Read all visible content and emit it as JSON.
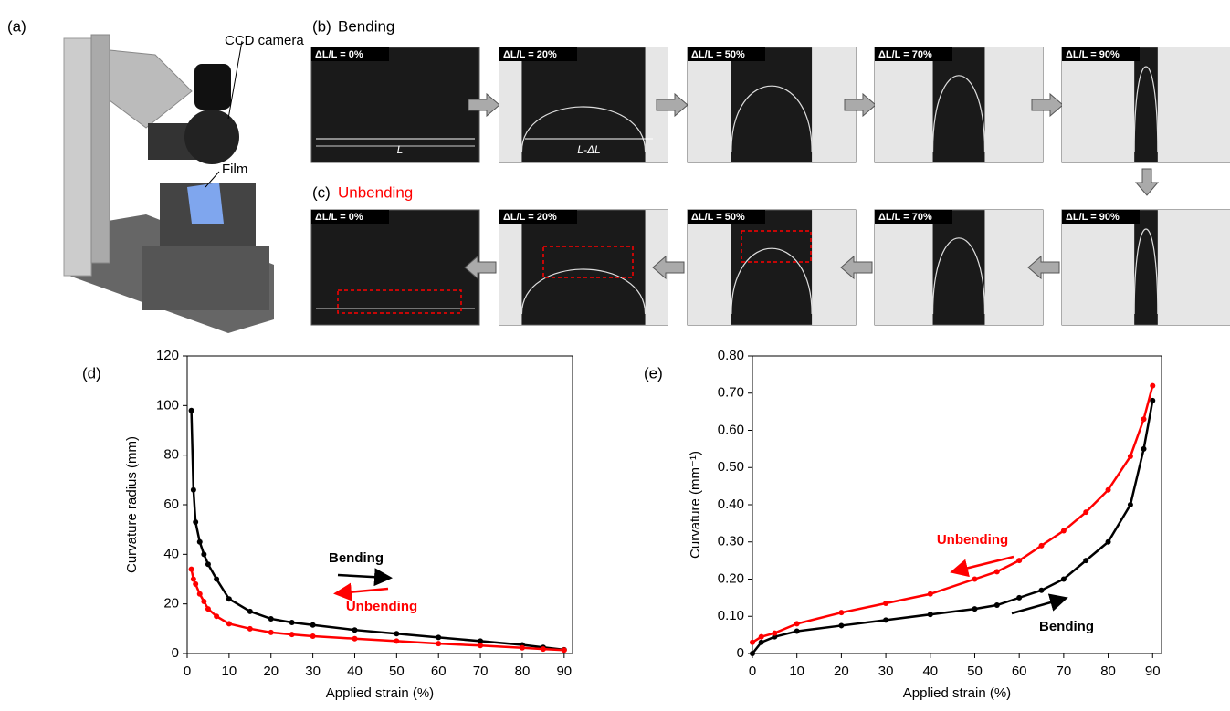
{
  "figure": {
    "panel_a": {
      "label": "(a)",
      "camera": "CCD camera",
      "film": "Film"
    },
    "panel_b": {
      "label": "(b)",
      "title": "Bending",
      "frames": [
        "ΔL/L = 0%",
        "ΔL/L = 20%",
        "ΔL/L = 50%",
        "ΔL/L = 70%",
        "ΔL/L = 90%"
      ],
      "length": "L",
      "length_change": "L-ΔL"
    },
    "panel_c": {
      "label": "(c)",
      "title": "Unbending",
      "frames": [
        "ΔL/L = 0%",
        "ΔL/L = 20%",
        "ΔL/L = 50%",
        "ΔL/L = 70%",
        "ΔL/L = 90%"
      ]
    },
    "panel_d": {
      "label": "(d)"
    },
    "panel_e": {
      "label": "(e)"
    }
  },
  "chart_data": [
    {
      "type": "scatter",
      "x_label": "Applied strain (%)",
      "y_label": "Curvature radius (mm)",
      "x": [
        1,
        1.5,
        2,
        3,
        4,
        5,
        7,
        10,
        15,
        20,
        25,
        30,
        40,
        50,
        60,
        70,
        80,
        85,
        90
      ],
      "series": [
        {
          "name": "Bending",
          "color": "#000000",
          "values": [
            98,
            66,
            53,
            45,
            40,
            36,
            30,
            22,
            17,
            14,
            12.5,
            11.5,
            9.5,
            8,
            6.5,
            5,
            3.5,
            2.5,
            1.5
          ]
        },
        {
          "name": "Unbending",
          "color": "#ff0000",
          "values": [
            34,
            30,
            28,
            24,
            21,
            18,
            15,
            12,
            10,
            8.5,
            7.7,
            7,
            6,
            5,
            4,
            3.2,
            2.3,
            1.8,
            1.4
          ]
        }
      ],
      "annotations": [
        {
          "text": "Bending",
          "color": "#000000"
        },
        {
          "text": "Unbending",
          "color": "#ff0000"
        }
      ],
      "xlim": [
        0,
        92
      ],
      "xticks": [
        0,
        10,
        20,
        30,
        40,
        50,
        60,
        70,
        80,
        90
      ],
      "ylim": [
        0,
        120
      ],
      "yticks": [
        0,
        20,
        40,
        60,
        80,
        100,
        120
      ]
    },
    {
      "type": "scatter",
      "x_label": "Applied strain (%)",
      "y_label": "Curvature  (mm⁻¹)",
      "x": [
        0,
        2,
        5,
        10,
        20,
        30,
        40,
        50,
        55,
        60,
        65,
        70,
        75,
        80,
        85,
        88,
        90
      ],
      "series": [
        {
          "name": "Bending",
          "color": "#000000",
          "values": [
            0,
            0.03,
            0.045,
            0.06,
            0.075,
            0.09,
            0.105,
            0.12,
            0.13,
            0.15,
            0.17,
            0.2,
            0.25,
            0.3,
            0.4,
            0.55,
            0.68
          ]
        },
        {
          "name": "Unbending",
          "color": "#ff0000",
          "values": [
            0.03,
            0.045,
            0.055,
            0.08,
            0.11,
            0.135,
            0.16,
            0.2,
            0.22,
            0.25,
            0.29,
            0.33,
            0.38,
            0.44,
            0.53,
            0.63,
            0.72
          ]
        }
      ],
      "annotations": [
        {
          "text": "Unbending",
          "color": "#ff0000"
        },
        {
          "text": "Bending",
          "color": "#000000"
        }
      ],
      "xlim": [
        0,
        92
      ],
      "xticks": [
        0,
        10,
        20,
        30,
        40,
        50,
        60,
        70,
        80,
        90
      ],
      "ylim": [
        0,
        0.8
      ],
      "yticks": [
        0,
        {
          "value": 0.1,
          "label": "0.10"
        },
        {
          "value": 0.2,
          "label": "0.20"
        },
        {
          "value": 0.3,
          "label": "0.30"
        },
        {
          "value": 0.4,
          "label": "0.40"
        },
        {
          "value": 0.5,
          "label": "0.50"
        },
        {
          "value": 0.6,
          "label": "0.60"
        },
        {
          "value": 0.7,
          "label": "0.70"
        },
        {
          "value": 0.8,
          "label": "0.80"
        }
      ]
    }
  ]
}
